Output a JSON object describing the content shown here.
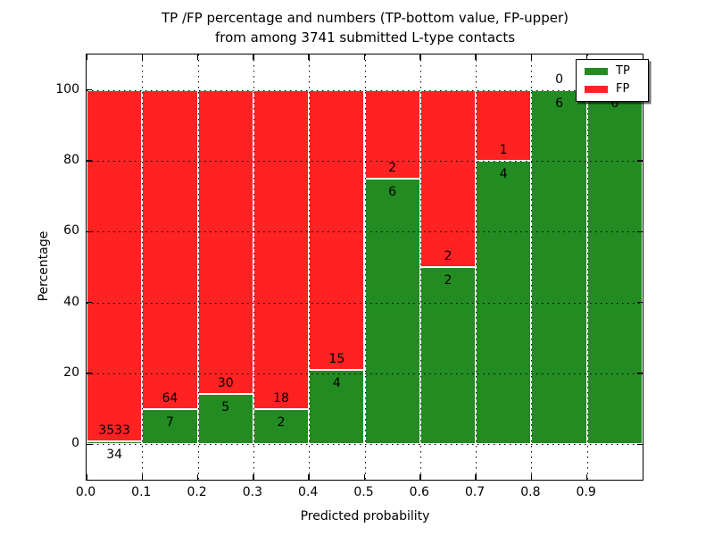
{
  "title": {
    "line1": "TP /FP percentage and numbers (TP-bottom value, FP-upper)",
    "line2": "from among 3741 submitted L-type contacts"
  },
  "axes": {
    "xlabel": "Predicted probability",
    "ylabel": "Percentage",
    "xlim": [
      0.0,
      1.0
    ],
    "ylim": [
      -10,
      110
    ],
    "x_tick_values": [
      0.0,
      0.1,
      0.2,
      0.3,
      0.4,
      0.5,
      0.6,
      0.7,
      0.8,
      0.9
    ],
    "x_tick_labels": [
      "0.0",
      "0.1",
      "0.2",
      "0.3",
      "0.4",
      "0.5",
      "0.6",
      "0.7",
      "0.8",
      "0.9"
    ],
    "y_tick_values": [
      0,
      20,
      40,
      60,
      80,
      100
    ],
    "y_tick_labels": [
      "0",
      "20",
      "40",
      "60",
      "80",
      "100"
    ],
    "grid": "dotted, drawn over bars"
  },
  "legend": {
    "position": "upper right",
    "items": [
      {
        "label": "TP",
        "color": "#228b22"
      },
      {
        "label": "FP",
        "color": "#fe2222"
      }
    ]
  },
  "chart_data": {
    "type": "bar",
    "stacked": true,
    "total_submitted": 3741,
    "bin_edges": [
      0.0,
      0.1,
      0.2,
      0.3,
      0.4,
      0.5,
      0.6,
      0.7,
      0.8,
      0.9,
      1.0
    ],
    "categories": [
      "0.0-0.1",
      "0.1-0.2",
      "0.2-0.3",
      "0.3-0.4",
      "0.4-0.5",
      "0.5-0.6",
      "0.6-0.7",
      "0.7-0.8",
      "0.8-0.9",
      "0.9-1.0"
    ],
    "series": [
      {
        "name": "TP",
        "color": "#228b22",
        "counts": [
          34,
          7,
          5,
          2,
          4,
          6,
          2,
          4,
          6,
          6
        ]
      },
      {
        "name": "FP",
        "color": "#fe2222",
        "counts": [
          3533,
          64,
          30,
          18,
          15,
          2,
          2,
          1,
          0,
          0
        ]
      }
    ],
    "tp_percent": [
      0.95,
      9.86,
      14.29,
      10.0,
      21.05,
      75.0,
      50.0,
      80.0,
      100.0,
      100.0
    ],
    "bar_total_percent": 100,
    "note": "count labels printed at TP/FP boundary: FP count above, TP count below"
  }
}
